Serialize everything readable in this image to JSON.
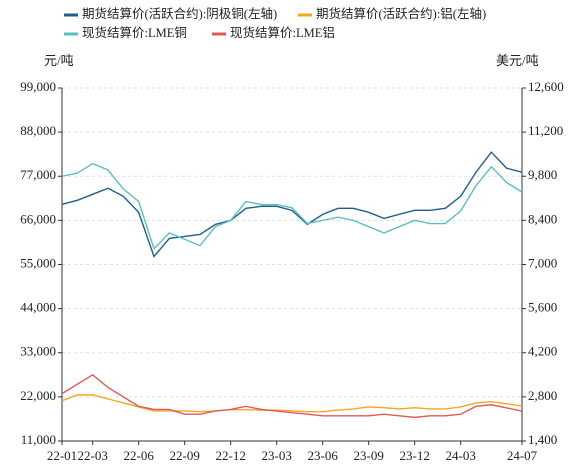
{
  "chart_data": {
    "type": "line",
    "y_label": "元/吨",
    "y2_label": "美元/吨",
    "categories": [
      "22-01",
      null,
      "22-03",
      null,
      null,
      "22-06",
      null,
      null,
      "22-09",
      null,
      null,
      "22-12",
      null,
      null,
      "23-03",
      null,
      null,
      "23-06",
      null,
      null,
      "23-09",
      null,
      null,
      "23-12",
      null,
      null,
      "24-03",
      null,
      null,
      null,
      "24-07"
    ],
    "ylim": [
      11000,
      99000
    ],
    "yticks": [
      {
        "value": 11000,
        "label": "11,000"
      },
      {
        "value": 22000,
        "label": "22,000"
      },
      {
        "value": 33000,
        "label": "33,000"
      },
      {
        "value": 44000,
        "label": "44,000"
      },
      {
        "value": 55000,
        "label": "55,000"
      },
      {
        "value": 66000,
        "label": "66,000"
      },
      {
        "value": 77000,
        "label": "77,000"
      },
      {
        "value": 88000,
        "label": "88,000"
      },
      {
        "value": 99000,
        "label": "99,000"
      }
    ],
    "y2lim": [
      1400,
      12600
    ],
    "y2ticks": [
      {
        "value": 1400,
        "label": "1,400"
      },
      {
        "value": 2800,
        "label": "2,800"
      },
      {
        "value": 4200,
        "label": "4,200"
      },
      {
        "value": 5600,
        "label": "5,600"
      },
      {
        "value": 7000,
        "label": "7,000"
      },
      {
        "value": 8400,
        "label": "8,400"
      },
      {
        "value": 9800,
        "label": "9,800"
      },
      {
        "value": 11200,
        "label": "11,200"
      },
      {
        "value": 12600,
        "label": "12,600"
      }
    ],
    "grid": true,
    "series": [
      {
        "name": "期货结算价(活跃合约):阴极铜(左轴)",
        "color": "#1f5f8b",
        "axis": "y",
        "values": [
          70000,
          71000,
          72500,
          74000,
          72000,
          68000,
          57000,
          61500,
          62000,
          62500,
          65000,
          66000,
          69000,
          69500,
          69500,
          68500,
          65000,
          67500,
          69000,
          69000,
          68000,
          66500,
          67500,
          68500,
          68500,
          69000,
          72000,
          78000,
          83000,
          79000,
          78000
        ]
      },
      {
        "name": "期货结算价(活跃合约):铝(左轴)",
        "color": "#f5a623",
        "axis": "y",
        "values": [
          21000,
          22500,
          22500,
          21500,
          20500,
          19500,
          18500,
          18500,
          18500,
          18300,
          18500,
          18800,
          18800,
          18700,
          18700,
          18500,
          18300,
          18300,
          18700,
          19000,
          19500,
          19300,
          19000,
          19300,
          19000,
          19000,
          19500,
          20500,
          20800,
          20300,
          19700
        ]
      },
      {
        "name": "现货结算价:LME铜",
        "color": "#5bbfc0",
        "axis": "y2",
        "values": [
          9800,
          9900,
          10200,
          10000,
          9400,
          9000,
          7500,
          8000,
          7800,
          7600,
          8200,
          8400,
          9000,
          8900,
          8900,
          8800,
          8300,
          8400,
          8500,
          8400,
          8200,
          8000,
          8200,
          8400,
          8300,
          8300,
          8700,
          9500,
          10100,
          9600,
          9300
        ]
      },
      {
        "name": "现货结算价:LME铝",
        "color": "#e05a5a",
        "axis": "y2",
        "values": [
          2900,
          3200,
          3500,
          3100,
          2800,
          2500,
          2400,
          2400,
          2250,
          2250,
          2350,
          2400,
          2500,
          2400,
          2350,
          2300,
          2250,
          2200,
          2200,
          2200,
          2200,
          2250,
          2200,
          2150,
          2200,
          2200,
          2250,
          2500,
          2550,
          2450,
          2350
        ]
      }
    ]
  }
}
